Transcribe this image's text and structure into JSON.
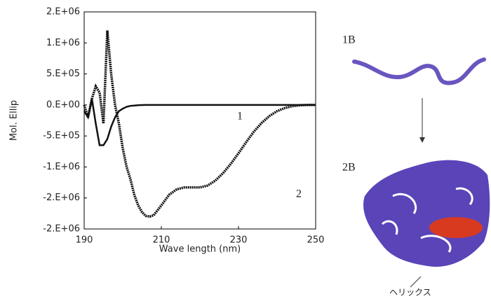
{
  "chart_data": {
    "type": "line",
    "x_label": "Wave length (nm)",
    "y_label": "Mol. Ellip",
    "x": [
      190,
      191,
      192,
      193,
      194,
      195,
      196,
      197,
      198,
      199,
      200,
      201,
      202,
      203,
      204,
      205,
      206,
      207,
      208,
      210,
      212,
      214,
      216,
      218,
      220,
      222,
      224,
      226,
      228,
      230,
      232,
      234,
      236,
      238,
      240,
      242,
      244,
      246,
      248,
      250
    ],
    "series": [
      {
        "name": "1",
        "color": "#111111",
        "values": [
          -100000,
          -200000,
          100000,
          -300000,
          -650000,
          -650000,
          -550000,
          -350000,
          -200000,
          -100000,
          -60000,
          -30000,
          -15000,
          -10000,
          -5000,
          -2000,
          0,
          0,
          0,
          0,
          0,
          0,
          0,
          0,
          0,
          0,
          0,
          0,
          0,
          0,
          0,
          0,
          0,
          0,
          0,
          0,
          0,
          0,
          0,
          0
        ]
      },
      {
        "name": "2",
        "color": "#111111",
        "values": [
          0,
          -200000,
          100000,
          300000,
          200000,
          -300000,
          1200000,
          500000,
          0,
          -300000,
          -700000,
          -1000000,
          -1200000,
          -1450000,
          -1620000,
          -1730000,
          -1790000,
          -1800000,
          -1780000,
          -1620000,
          -1450000,
          -1360000,
          -1330000,
          -1330000,
          -1330000,
          -1300000,
          -1220000,
          -1100000,
          -950000,
          -780000,
          -600000,
          -430000,
          -290000,
          -180000,
          -100000,
          -50000,
          -20000,
          -5000,
          0,
          0
        ]
      }
    ],
    "xlim": [
      190,
      250
    ],
    "xticks": [
      190,
      210,
      230,
      250
    ],
    "ylim": [
      -2000000,
      1500000
    ],
    "yticks": [
      {
        "value": 1500000,
        "label": "2.E+06"
      },
      {
        "value": 1000000,
        "label": "1.E+06"
      },
      {
        "value": 500000,
        "label": "5.E+05"
      },
      {
        "value": 0,
        "label": "0.E+00"
      },
      {
        "value": -500000,
        "label": "-5.E+05"
      },
      {
        "value": -1000000,
        "label": "-1.E+06"
      },
      {
        "value": -1500000,
        "label": "-2.E+06"
      },
      {
        "value": -2000000,
        "label": "-2.E+06"
      }
    ]
  },
  "illustration": {
    "top_label": "1B",
    "bottom_label": "2B",
    "callout": "ヘリックス"
  }
}
